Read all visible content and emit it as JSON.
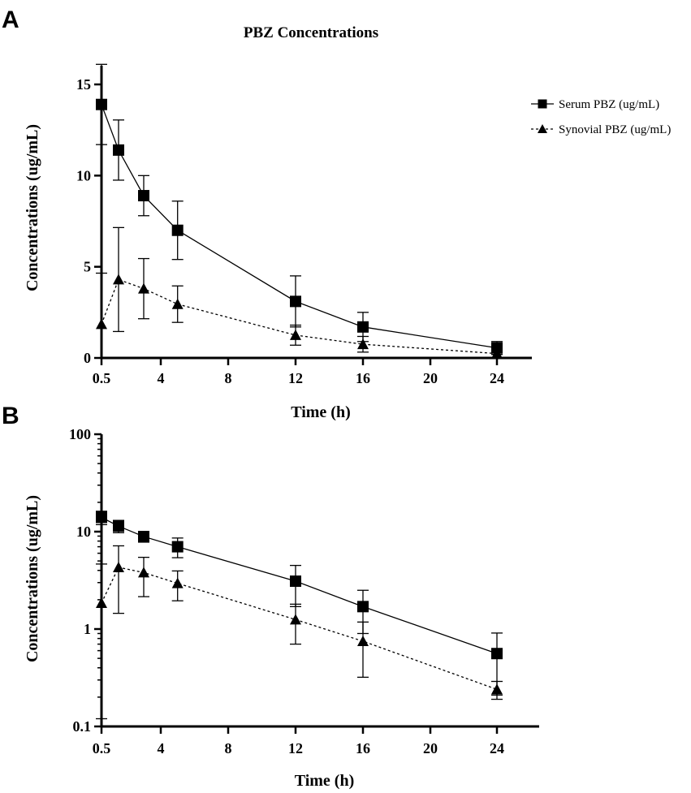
{
  "figure": {
    "panel_letters": [
      "A",
      "B"
    ]
  },
  "chart_data": [
    {
      "type": "line",
      "panel": "A",
      "title": "PBZ Concentrations",
      "xlabel": "Time (h)",
      "ylabel": "Concentrations (ug/mL)",
      "xscale": "linear",
      "xlim": [
        0.5,
        26
      ],
      "ylim": [
        0,
        15.5
      ],
      "xticks": [
        0.5,
        4,
        8,
        12,
        16,
        20,
        24
      ],
      "xtick_labels": [
        "0.5",
        "4",
        "8",
        "12",
        "16",
        "20",
        "24"
      ],
      "yticks": [
        0,
        5,
        10,
        15
      ],
      "ytick_labels": [
        "0",
        "5",
        "10",
        "15"
      ],
      "legend_position": "top-right",
      "series": [
        {
          "name": "Serum PBZ (ug/mL)",
          "marker": "square",
          "line": "solid",
          "x": [
            0.5,
            1.5,
            3,
            5,
            12,
            16,
            24
          ],
          "y": [
            13.9,
            11.4,
            8.9,
            7.0,
            3.1,
            1.7,
            0.55
          ],
          "err": [
            2.2,
            1.65,
            1.1,
            1.6,
            1.4,
            0.8,
            0.35
          ]
        },
        {
          "name": "Synovial PBZ (ug/mL)",
          "marker": "triangle",
          "line": "dashed",
          "x": [
            0.5,
            1.5,
            3,
            5,
            12,
            16,
            24
          ],
          "y": [
            1.85,
            4.3,
            3.8,
            2.95,
            1.25,
            0.75,
            0.24
          ],
          "err": [
            2.8,
            2.85,
            1.65,
            1.0,
            0.55,
            0.43,
            0.05
          ]
        }
      ]
    },
    {
      "type": "line",
      "panel": "B",
      "title": "",
      "xlabel": "Time (h)",
      "ylabel": "Concentrations (ug/mL)",
      "xscale": "linear",
      "yscale": "log",
      "xlim": [
        0.5,
        26
      ],
      "ylim": [
        0.1,
        100
      ],
      "xticks": [
        0.5,
        4,
        8,
        12,
        16,
        20,
        24
      ],
      "xtick_labels": [
        "0.5",
        "4",
        "8",
        "12",
        "16",
        "20",
        "24"
      ],
      "yticks": [
        0.1,
        1,
        10,
        100
      ],
      "ytick_labels": [
        "0.1",
        "1",
        "10",
        "100"
      ],
      "series": [
        {
          "name": "Serum PBZ (ug/mL)",
          "marker": "square",
          "line": "solid",
          "x": [
            0.5,
            1.5,
            3,
            5,
            12,
            16,
            24
          ],
          "y": [
            14.0,
            11.4,
            8.9,
            7.0,
            3.1,
            1.7,
            0.56
          ],
          "err": [
            2.2,
            1.65,
            1.1,
            1.6,
            1.4,
            0.8,
            0.35
          ]
        },
        {
          "name": "Synovial PBZ (ug/mL)",
          "marker": "triangle",
          "line": "dashed",
          "x": [
            0.5,
            1.5,
            3,
            5,
            12,
            16,
            24
          ],
          "y": [
            1.85,
            4.3,
            3.8,
            2.95,
            1.25,
            0.75,
            0.24
          ],
          "err": [
            2.8,
            2.85,
            1.65,
            1.0,
            0.55,
            0.43,
            0.05
          ]
        }
      ]
    }
  ]
}
